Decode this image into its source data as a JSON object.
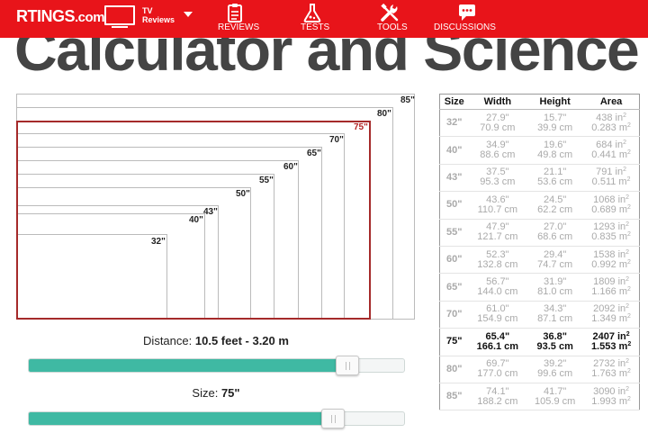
{
  "nav": {
    "logo": "RTINGS",
    "logo_suffix": ".com",
    "category_label_line1": "TV",
    "category_label_line2": "Reviews",
    "items": [
      {
        "label": "REVIEWS",
        "icon": "clipboard-icon"
      },
      {
        "label": "TESTS",
        "icon": "flask-icon"
      },
      {
        "label": "TOOLS",
        "icon": "tools-icon"
      },
      {
        "label": "DISCUSSIONS",
        "icon": "chat-icon"
      }
    ],
    "accent_color": "#e8141a"
  },
  "page": {
    "title": "Calculator and Science"
  },
  "diagram": {
    "selected_size": "75\"",
    "sizes": [
      "85\"",
      "80\"",
      "75\"",
      "70\"",
      "65\"",
      "60\"",
      "55\"",
      "50\"",
      "43\"",
      "40\"",
      "32\""
    ]
  },
  "distance": {
    "label": "Distance:",
    "value": "10.5 feet - 3.20 m",
    "fill_fraction": 0.85
  },
  "size_slider": {
    "label": "Size:",
    "value": "75\"",
    "fill_fraction": 0.81
  },
  "table": {
    "headers": [
      "Size",
      "Width",
      "Height",
      "Area"
    ],
    "rows": [
      {
        "size": "32\"",
        "w_in": "27.9\"",
        "w_cm": "70.9 cm",
        "h_in": "15.7\"",
        "h_cm": "39.9 cm",
        "a_in": "438 in",
        "a_m": "0.283 m",
        "active": false
      },
      {
        "size": "40\"",
        "w_in": "34.9\"",
        "w_cm": "88.6 cm",
        "h_in": "19.6\"",
        "h_cm": "49.8 cm",
        "a_in": "684 in",
        "a_m": "0.441 m",
        "active": false
      },
      {
        "size": "43\"",
        "w_in": "37.5\"",
        "w_cm": "95.3 cm",
        "h_in": "21.1\"",
        "h_cm": "53.6 cm",
        "a_in": "791 in",
        "a_m": "0.511 m",
        "active": false
      },
      {
        "size": "50\"",
        "w_in": "43.6\"",
        "w_cm": "110.7 cm",
        "h_in": "24.5\"",
        "h_cm": "62.2 cm",
        "a_in": "1068 in",
        "a_m": "0.689 m",
        "active": false
      },
      {
        "size": "55\"",
        "w_in": "47.9\"",
        "w_cm": "121.7 cm",
        "h_in": "27.0\"",
        "h_cm": "68.6 cm",
        "a_in": "1293 in",
        "a_m": "0.835 m",
        "active": false
      },
      {
        "size": "60\"",
        "w_in": "52.3\"",
        "w_cm": "132.8 cm",
        "h_in": "29.4\"",
        "h_cm": "74.7 cm",
        "a_in": "1538 in",
        "a_m": "0.992 m",
        "active": false
      },
      {
        "size": "65\"",
        "w_in": "56.7\"",
        "w_cm": "144.0 cm",
        "h_in": "31.9\"",
        "h_cm": "81.0 cm",
        "a_in": "1809 in",
        "a_m": "1.166 m",
        "active": false
      },
      {
        "size": "70\"",
        "w_in": "61.0\"",
        "w_cm": "154.9 cm",
        "h_in": "34.3\"",
        "h_cm": "87.1 cm",
        "a_in": "2092 in",
        "a_m": "1.349 m",
        "active": false
      },
      {
        "size": "75\"",
        "w_in": "65.4\"",
        "w_cm": "166.1 cm",
        "h_in": "36.8\"",
        "h_cm": "93.5 cm",
        "a_in": "2407 in",
        "a_m": "1.553 m",
        "active": true
      },
      {
        "size": "80\"",
        "w_in": "69.7\"",
        "w_cm": "177.0 cm",
        "h_in": "39.2\"",
        "h_cm": "99.6 cm",
        "a_in": "2732 in",
        "a_m": "1.763 m",
        "active": false
      },
      {
        "size": "85\"",
        "w_in": "74.1\"",
        "w_cm": "188.2 cm",
        "h_in": "41.7\"",
        "h_cm": "105.9 cm",
        "a_in": "3090 in",
        "a_m": "1.993 m",
        "active": false
      }
    ],
    "exponent": "2"
  }
}
